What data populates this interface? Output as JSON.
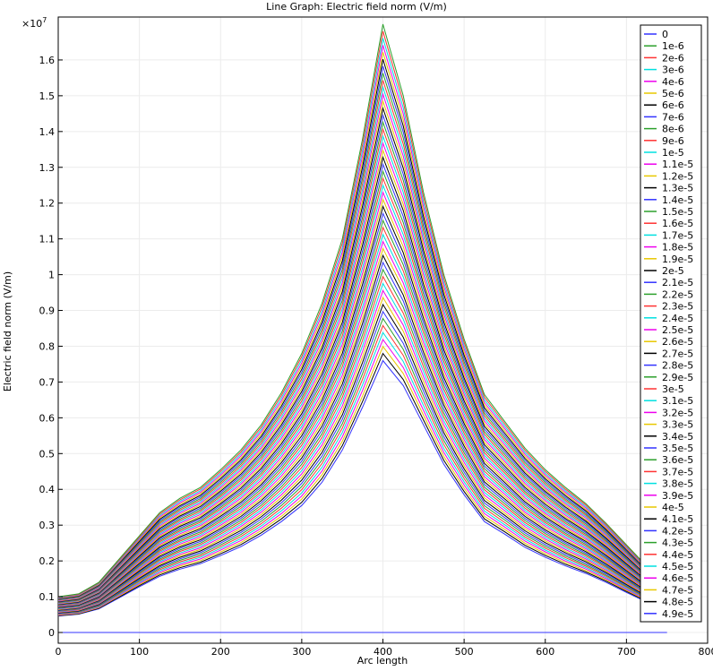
{
  "chart_data": {
    "type": "line",
    "title": "Line Graph: Electric field norm (V/m)",
    "xlabel": "Arc length",
    "ylabel": "Electric field norm (V/m)",
    "y_multiplier_label": "×10",
    "y_multiplier_exp": "7",
    "xlim": [
      0,
      800
    ],
    "ylim": [
      -0.03,
      1.72
    ],
    "x_ticks": [
      0,
      100,
      200,
      300,
      400,
      500,
      600,
      700,
      800
    ],
    "y_ticks": [
      0,
      0.1,
      0.2,
      0.3,
      0.4,
      0.5,
      0.6,
      0.7,
      0.8,
      0.9,
      1,
      1.1,
      1.2,
      1.3,
      1.4,
      1.5,
      1.6
    ],
    "grid": true,
    "legend_position": "top-right, inside",
    "x": [
      0,
      25,
      50,
      75,
      100,
      125,
      150,
      175,
      200,
      225,
      250,
      275,
      300,
      325,
      350,
      375,
      400,
      425,
      450,
      475,
      500,
      525,
      550,
      575,
      600,
      625,
      650,
      675,
      700,
      725,
      750
    ],
    "base_profile": [
      0.046,
      0.051,
      0.066,
      0.097,
      0.128,
      0.157,
      0.177,
      0.192,
      0.215,
      0.24,
      0.272,
      0.31,
      0.355,
      0.42,
      0.51,
      0.63,
      0.76,
      0.69,
      0.58,
      0.47,
      0.385,
      0.31,
      0.275,
      0.238,
      0.21,
      0.186,
      0.165,
      0.14,
      0.112,
      0.085,
      0.062
    ],
    "max_profile": [
      0.1,
      0.108,
      0.14,
      0.205,
      0.27,
      0.335,
      0.375,
      0.405,
      0.455,
      0.51,
      0.58,
      0.67,
      0.78,
      0.92,
      1.1,
      1.38,
      1.7,
      1.5,
      1.23,
      1.0,
      0.82,
      0.665,
      0.59,
      0.515,
      0.455,
      0.405,
      0.36,
      0.305,
      0.245,
      0.185,
      0.135
    ],
    "series": [
      {
        "name": "0",
        "color": "#3333ff",
        "scale": null
      },
      {
        "name": "1e-6",
        "color": "#2ca02c",
        "scale": 1.0
      },
      {
        "name": "2e-6",
        "color": "#ff3333",
        "scale": 0.9792
      },
      {
        "name": "3e-6",
        "color": "#00e0e0",
        "scale": 0.9583
      },
      {
        "name": "4e-6",
        "color": "#ee00ee",
        "scale": 0.9375
      },
      {
        "name": "5e-6",
        "color": "#e8c800",
        "scale": 0.9167
      },
      {
        "name": "6e-6",
        "color": "#000000",
        "scale": 0.8958
      },
      {
        "name": "7e-6",
        "color": "#3333ff",
        "scale": 0.875
      },
      {
        "name": "8e-6",
        "color": "#2ca02c",
        "scale": 0.8542
      },
      {
        "name": "9e-6",
        "color": "#ff3333",
        "scale": 0.8333
      },
      {
        "name": "1e-5",
        "color": "#00e0e0",
        "scale": 0.8125
      },
      {
        "name": "1.1e-5",
        "color": "#ee00ee",
        "scale": 0.7917
      },
      {
        "name": "1.2e-5",
        "color": "#e8c800",
        "scale": 0.7708
      },
      {
        "name": "1.3e-5",
        "color": "#000000",
        "scale": 0.75
      },
      {
        "name": "1.4e-5",
        "color": "#3333ff",
        "scale": 0.7292
      },
      {
        "name": "1.5e-5",
        "color": "#2ca02c",
        "scale": 0.7083
      },
      {
        "name": "1.6e-5",
        "color": "#ff3333",
        "scale": 0.6875
      },
      {
        "name": "1.7e-5",
        "color": "#00e0e0",
        "scale": 0.6667
      },
      {
        "name": "1.8e-5",
        "color": "#ee00ee",
        "scale": 0.6458
      },
      {
        "name": "1.9e-5",
        "color": "#e8c800",
        "scale": 0.625
      },
      {
        "name": "2e-5",
        "color": "#000000",
        "scale": 0.6042
      },
      {
        "name": "2.1e-5",
        "color": "#3333ff",
        "scale": 0.5833
      },
      {
        "name": "2.2e-5",
        "color": "#2ca02c",
        "scale": 0.5625
      },
      {
        "name": "2.3e-5",
        "color": "#ff3333",
        "scale": 0.5417
      },
      {
        "name": "2.4e-5",
        "color": "#00e0e0",
        "scale": 0.5208
      },
      {
        "name": "2.5e-5",
        "color": "#ee00ee",
        "scale": 0.5
      },
      {
        "name": "2.6e-5",
        "color": "#e8c800",
        "scale": 0.4792
      },
      {
        "name": "2.7e-5",
        "color": "#000000",
        "scale": 0.4583
      },
      {
        "name": "2.8e-5",
        "color": "#3333ff",
        "scale": 0.4375
      },
      {
        "name": "2.9e-5",
        "color": "#2ca02c",
        "scale": 0.4167
      },
      {
        "name": "3e-5",
        "color": "#ff3333",
        "scale": 0.3958
      },
      {
        "name": "3.1e-5",
        "color": "#00e0e0",
        "scale": 0.375
      },
      {
        "name": "3.2e-5",
        "color": "#ee00ee",
        "scale": 0.3542
      },
      {
        "name": "3.3e-5",
        "color": "#e8c800",
        "scale": 0.3333
      },
      {
        "name": "3.4e-5",
        "color": "#000000",
        "scale": 0.3125
      },
      {
        "name": "3.5e-5",
        "color": "#3333ff",
        "scale": 0.2917
      },
      {
        "name": "3.6e-5",
        "color": "#2ca02c",
        "scale": 0.2708
      },
      {
        "name": "3.7e-5",
        "color": "#ff3333",
        "scale": 0.25
      },
      {
        "name": "3.8e-5",
        "color": "#00e0e0",
        "scale": 0.2292
      },
      {
        "name": "3.9e-5",
        "color": "#ee00ee",
        "scale": 0.2083
      },
      {
        "name": "4e-5",
        "color": "#e8c800",
        "scale": 0.1875
      },
      {
        "name": "4.1e-5",
        "color": "#000000",
        "scale": 0.1667
      },
      {
        "name": "4.2e-5",
        "color": "#3333ff",
        "scale": 0.1458
      },
      {
        "name": "4.3e-5",
        "color": "#2ca02c",
        "scale": 0.125
      },
      {
        "name": "4.4e-5",
        "color": "#ff3333",
        "scale": 0.1042
      },
      {
        "name": "4.5e-5",
        "color": "#00e0e0",
        "scale": 0.0833
      },
      {
        "name": "4.6e-5",
        "color": "#ee00ee",
        "scale": 0.0625
      },
      {
        "name": "4.7e-5",
        "color": "#e8c800",
        "scale": 0.0417
      },
      {
        "name": "4.8e-5",
        "color": "#000000",
        "scale": 0.0208
      },
      {
        "name": "4.9e-5",
        "color": "#3333ff",
        "scale": 0.0
      }
    ]
  }
}
